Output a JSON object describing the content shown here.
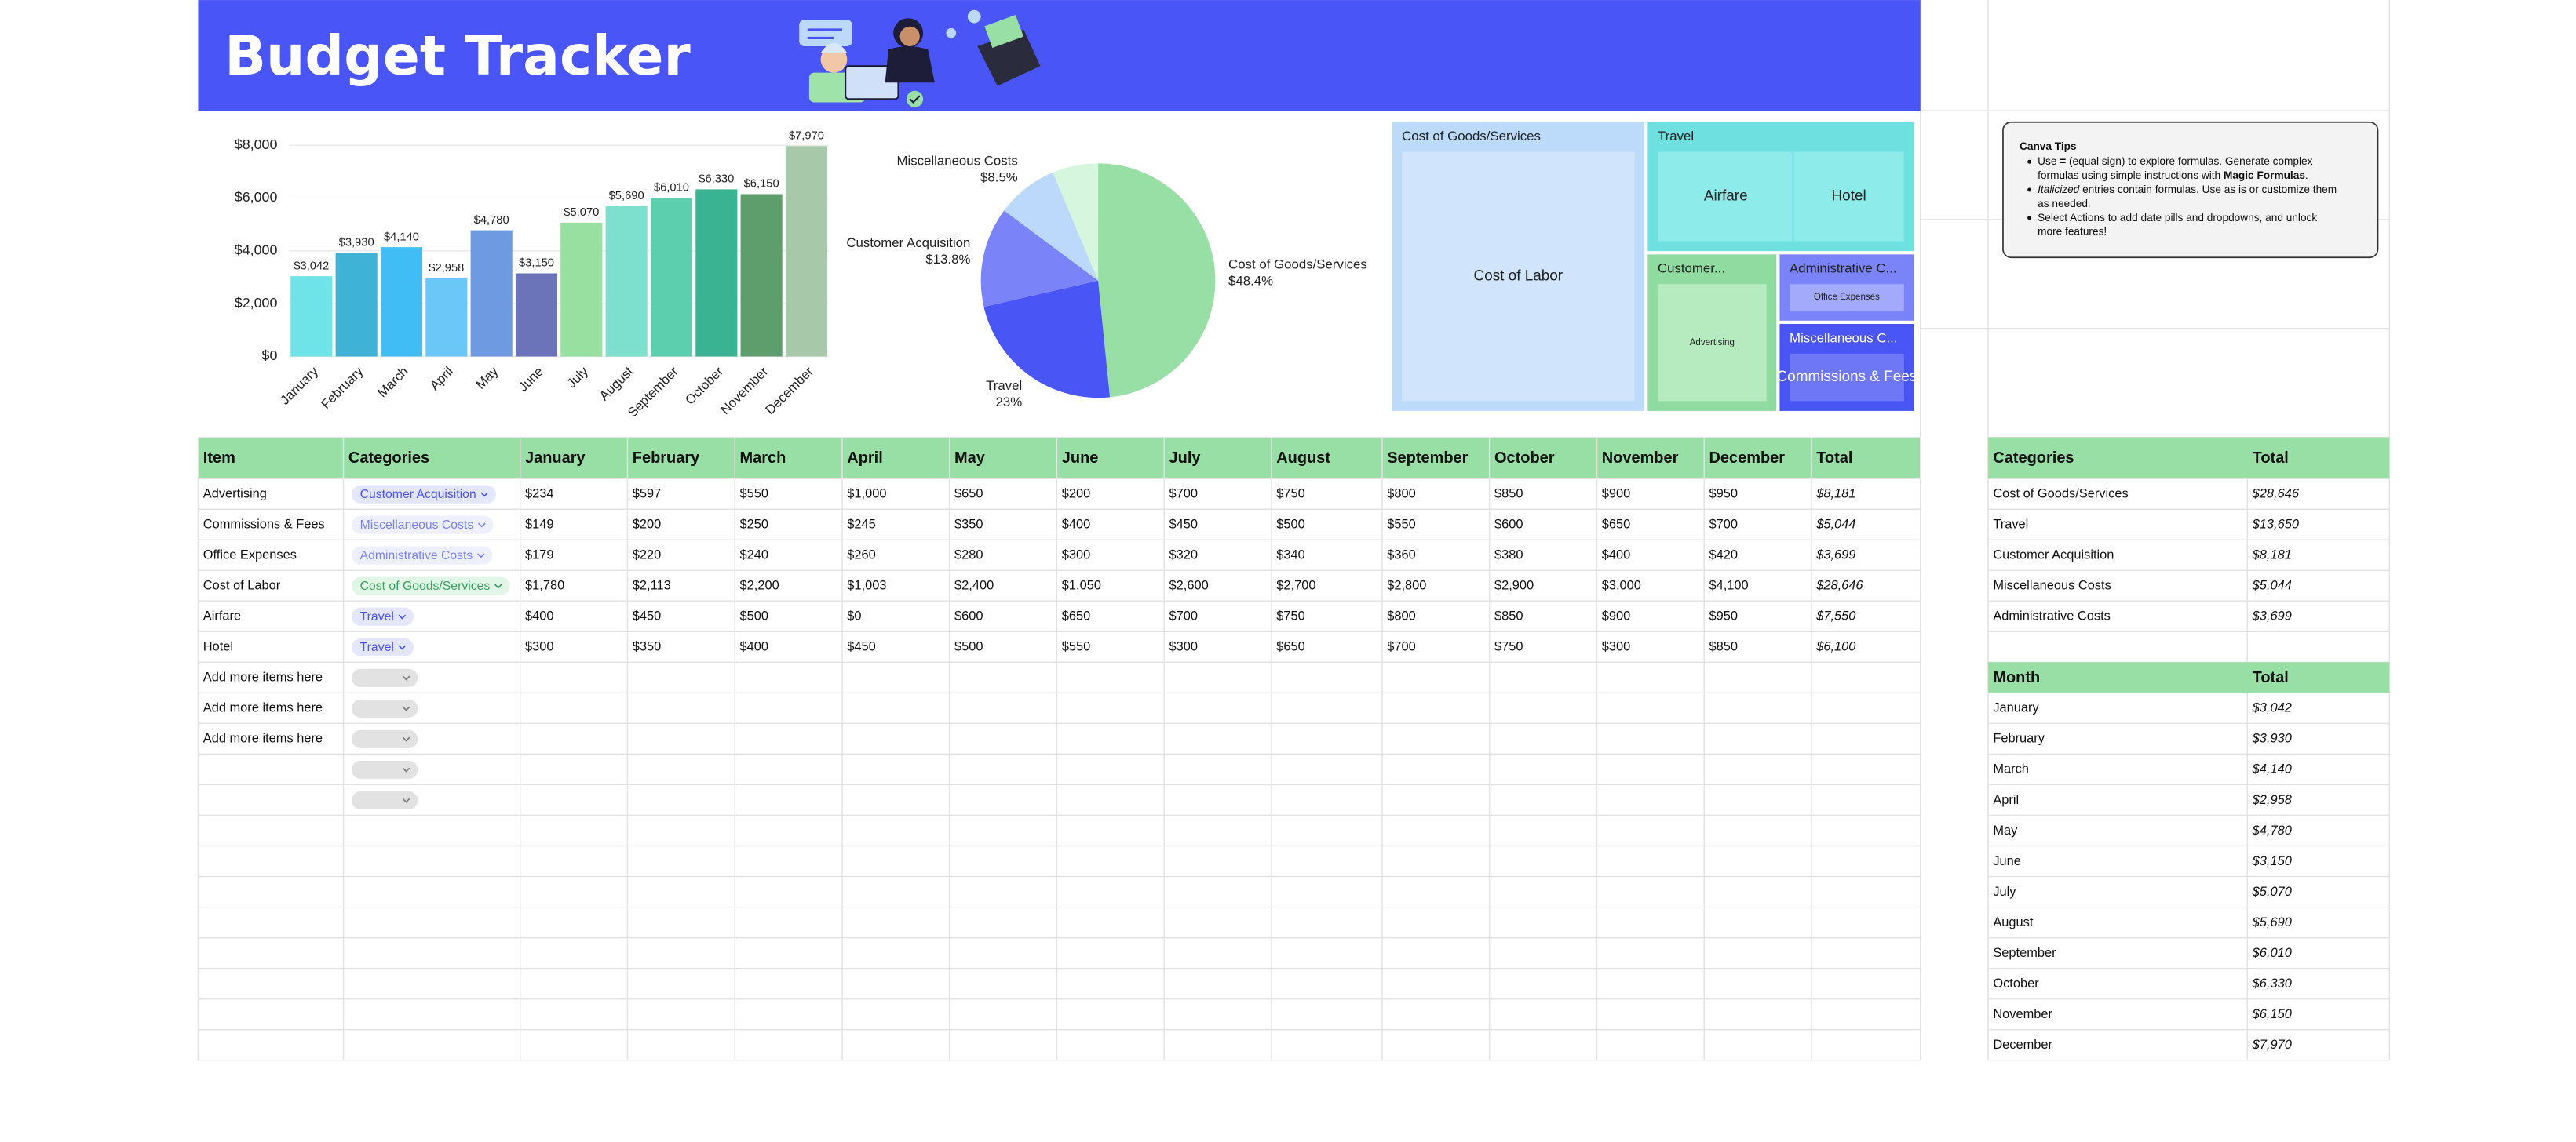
{
  "header": {
    "title": "Budget Tracker"
  },
  "chart_data": [
    {
      "type": "bar",
      "categories": [
        "January",
        "February",
        "March",
        "April",
        "May",
        "June",
        "July",
        "August",
        "September",
        "October",
        "November",
        "December"
      ],
      "values": [
        3042,
        3930,
        4140,
        2958,
        4780,
        3150,
        5070,
        5690,
        6010,
        6330,
        6150,
        7970
      ],
      "value_labels": [
        "$3,042",
        "$3,930",
        "$4,140",
        "$2,958",
        "$4,780",
        "$3,150",
        "$5,070",
        "$5,690",
        "$6,010",
        "$6,330",
        "$6,150",
        "$7,970"
      ],
      "colors": [
        "#6ee3e8",
        "#3eb3d6",
        "#41bdf5",
        "#6ac7f7",
        "#6d9ae0",
        "#6b74b8",
        "#98e0a0",
        "#7de0cf",
        "#5ccfae",
        "#3ab392",
        "#5e9e6c",
        "#a7c9a9"
      ],
      "ylim": [
        0,
        8000
      ],
      "yticks": [
        {
          "value": 0,
          "label": "$0"
        },
        {
          "value": 2000,
          "label": "$2,000"
        },
        {
          "value": 4000,
          "label": "$4,000"
        },
        {
          "value": 6000,
          "label": "$6,000"
        },
        {
          "value": 8000,
          "label": "$8,000"
        }
      ],
      "grid": true
    },
    {
      "type": "pie",
      "categories": [
        "Cost of Goods/Services",
        "Travel",
        "Customer Acquisition",
        "Miscellaneous Costs",
        null
      ],
      "values": [
        48.4,
        23,
        13.8,
        8.5,
        6.3
      ],
      "value_labels": [
        "$48.4%",
        "23%",
        "$13.8%",
        "$8.5%",
        null
      ],
      "colors": [
        "#98dfa6",
        "#4a55f5",
        "#7b83f8",
        "#bcd8fb",
        "#d6f7dd"
      ]
    },
    {
      "type": "treemap",
      "groups": [
        {
          "name": "Cost of Goods/Services",
          "color": "#bcdaf9",
          "inner": "#d0e5fb",
          "children": [
            {
              "name": "Cost of Labor",
              "value": 28646
            }
          ]
        },
        {
          "name": "Travel",
          "color": "#6fe0e0",
          "inner": "#8debea",
          "children": [
            {
              "name": "Airfare",
              "value": 7550
            },
            {
              "name": "Hotel",
              "value": 6100
            }
          ]
        },
        {
          "name": "Customer...",
          "color": "#90dca0",
          "inner": "#b6ebc0",
          "children": [
            {
              "name": "Advertising",
              "value": 8181
            }
          ]
        },
        {
          "name": "Administrative C...",
          "color": "#7b83f8",
          "inner": "#a4aafb",
          "children": [
            {
              "name": "Office Expenses",
              "value": 3699
            }
          ]
        },
        {
          "name": "Miscellaneous C...",
          "color": "#4a55f5",
          "inner": "#6e78f7",
          "children": [
            {
              "name": "Commissions & Fees",
              "value": 5044
            }
          ]
        }
      ]
    }
  ],
  "tips": {
    "title": "Canva Tips",
    "bullets": [
      [
        [
          {
            "text": "Use ",
            "style": "normal"
          },
          {
            "text": "=",
            "style": "bold"
          },
          {
            "text": " (equal sign) to explore formulas. Generate complex",
            "style": "normal"
          }
        ],
        [
          {
            "text": "formulas using simple instructions with ",
            "style": "normal"
          },
          {
            "text": "Magic Formulas",
            "style": "bold"
          },
          {
            "text": ".",
            "style": "normal"
          }
        ]
      ],
      [
        [
          {
            "text": "Italicized",
            "style": "italic"
          },
          {
            "text": " entries contain formulas. Use as is or customize them",
            "style": "normal"
          }
        ],
        [
          {
            "text": "as needed.",
            "style": "normal"
          }
        ]
      ],
      [
        [
          {
            "text": "Select Actions to add date pills and dropdowns, and unlock",
            "style": "normal"
          }
        ],
        [
          {
            "text": "more features!",
            "style": "normal"
          }
        ]
      ]
    ]
  },
  "table": {
    "header": [
      "Item",
      "Categories",
      "January",
      "February",
      "March",
      "April",
      "May",
      "June",
      "July",
      "August",
      "September",
      "October",
      "November",
      "December",
      "Total"
    ],
    "rows": [
      [
        "Advertising",
        "Customer Acquisition",
        "$234",
        "$597",
        "$550",
        "$1,000",
        "$650",
        "$200",
        "$700",
        "$750",
        "$800",
        "$850",
        "$900",
        "$950",
        "$8,181"
      ],
      [
        "Commissions & Fees",
        "Miscellaneous Costs",
        "$149",
        "$200",
        "$250",
        "$245",
        "$350",
        "$400",
        "$450",
        "$500",
        "$550",
        "$600",
        "$650",
        "$700",
        "$5,044"
      ],
      [
        "Office Expenses",
        "Administrative Costs",
        "$179",
        "$220",
        "$240",
        "$260",
        "$280",
        "$300",
        "$320",
        "$340",
        "$360",
        "$380",
        "$400",
        "$420",
        "$3,699"
      ],
      [
        "Cost of Labor",
        "Cost of Goods/Services",
        "$1,780",
        "$2,113",
        "$2,200",
        "$1,003",
        "$2,400",
        "$1,050",
        "$2,600",
        "$2,700",
        "$2,800",
        "$2,900",
        "$3,000",
        "$4,100",
        "$28,646"
      ],
      [
        "Airfare",
        "Travel",
        "$400",
        "$450",
        "$500",
        "$0",
        "$600",
        "$650",
        "$700",
        "$750",
        "$800",
        "$850",
        "$900",
        "$950",
        "$7,550"
      ],
      [
        "Hotel",
        "Travel",
        "$300",
        "$350",
        "$400",
        "$450",
        "$500",
        "$550",
        "$300",
        "$650",
        "$700",
        "$750",
        "$300",
        "$850",
        "$6,100"
      ]
    ],
    "category_colors": [
      [
        "#e4e6fe",
        "#4a55f5"
      ],
      [
        "#eef0ff",
        "#7b83f8"
      ],
      [
        "#eef0ff",
        "#7b83f8"
      ],
      [
        "#e2f6e7",
        "#3aa060"
      ],
      [
        "#e4e6fe",
        "#4a55f5"
      ],
      [
        "#e4e6fe",
        "#4a55f5"
      ]
    ],
    "placeholder_rows": [
      "Add more items here",
      "Add more items here",
      "Add more items here"
    ]
  },
  "category_summary": {
    "header": [
      "Categories",
      "Total"
    ],
    "rows": [
      [
        "Cost of Goods/Services",
        "$28,646"
      ],
      [
        "Travel",
        "$13,650"
      ],
      [
        "Customer Acquisition",
        "$8,181"
      ],
      [
        "Miscellaneous Costs",
        "$5,044"
      ],
      [
        "Administrative Costs",
        "$3,699"
      ]
    ]
  },
  "month_summary": {
    "header": [
      "Month",
      "Total"
    ],
    "rows": [
      [
        "January",
        "$3,042"
      ],
      [
        "February",
        "$3,930"
      ],
      [
        "March",
        "$4,140"
      ],
      [
        "April",
        "$2,958"
      ],
      [
        "May",
        "$4,780"
      ],
      [
        "June",
        "$3,150"
      ],
      [
        "July",
        "$5,070"
      ],
      [
        "August",
        "$5,690"
      ],
      [
        "September",
        "$6,010"
      ],
      [
        "October",
        "$6,330"
      ],
      [
        "November",
        "$6,150"
      ],
      [
        "December",
        "$7,970"
      ]
    ]
  }
}
